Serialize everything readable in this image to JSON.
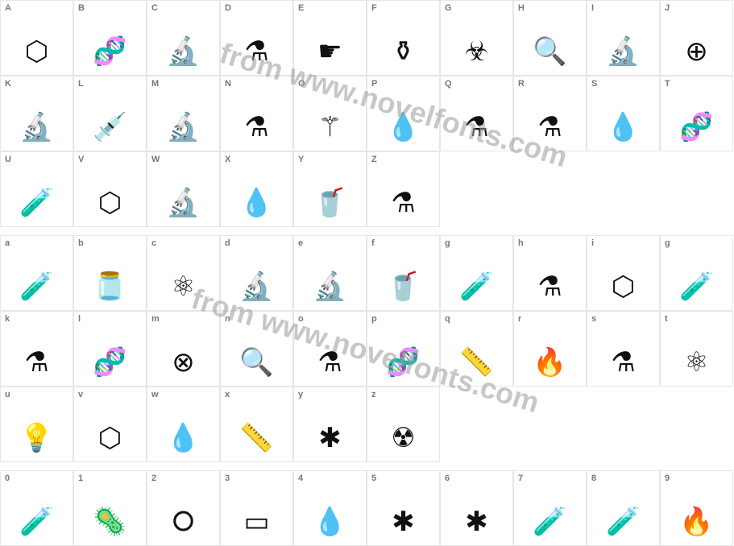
{
  "watermark": {
    "text": "from www.novelfonts.com",
    "color": "#9b9b9b"
  },
  "grid": {
    "cell_border_color": "#e6e6e6",
    "label_color": "#777777",
    "icon_color": "#111111",
    "columns": 10,
    "sections": [
      {
        "kind": "uppercase",
        "rows": [
          [
            {
              "char": "A",
              "icon": "molecule",
              "glyph": "⬡"
            },
            {
              "char": "B",
              "icon": "dna",
              "glyph": "🧬"
            },
            {
              "char": "C",
              "icon": "microscope",
              "glyph": "🔬"
            },
            {
              "char": "D",
              "icon": "flask",
              "glyph": "⚗"
            },
            {
              "char": "E",
              "icon": "dropper-hand",
              "glyph": "☛"
            },
            {
              "char": "F",
              "icon": "round-flask",
              "glyph": "⚱"
            },
            {
              "char": "G",
              "icon": "biohazard",
              "glyph": "☣"
            },
            {
              "char": "H",
              "icon": "tube-magnifier",
              "glyph": "🔍"
            },
            {
              "char": "I",
              "icon": "microscope-outline",
              "glyph": "🔬"
            },
            {
              "char": "J",
              "icon": "round-flask-plus",
              "glyph": "⊕"
            }
          ],
          [
            {
              "char": "K",
              "icon": "microscope2",
              "glyph": "🔬"
            },
            {
              "char": "L",
              "icon": "syringe",
              "glyph": "💉"
            },
            {
              "char": "M",
              "icon": "microscope3",
              "glyph": "🔬"
            },
            {
              "char": "N",
              "icon": "lab-stand",
              "glyph": "⚗"
            },
            {
              "char": "O",
              "icon": "mortar-pestle",
              "glyph": "⚚"
            },
            {
              "char": "P",
              "icon": "drop-tubes",
              "glyph": "💧"
            },
            {
              "char": "Q",
              "icon": "flasks-pair",
              "glyph": "⚗"
            },
            {
              "char": "R",
              "icon": "flask-bubbles",
              "glyph": "⚗"
            },
            {
              "char": "S",
              "icon": "tube-dropper",
              "glyph": "💧"
            },
            {
              "char": "T",
              "icon": "dna-x",
              "glyph": "🧬"
            }
          ],
          [
            {
              "char": "U",
              "icon": "beaker-stir",
              "glyph": "🧪"
            },
            {
              "char": "V",
              "icon": "chemical-structure",
              "glyph": "⬡"
            },
            {
              "char": "W",
              "icon": "microscope4",
              "glyph": "🔬"
            },
            {
              "char": "X",
              "icon": "dropper",
              "glyph": "💧"
            },
            {
              "char": "Y",
              "icon": "measuring-cup",
              "glyph": "🥤"
            },
            {
              "char": "Z",
              "icon": "round-flask2",
              "glyph": "⚗"
            }
          ]
        ]
      },
      {
        "kind": "lowercase",
        "rows": [
          [
            {
              "char": "a",
              "icon": "test-tubes",
              "glyph": "🧪"
            },
            {
              "char": "b",
              "icon": "jar",
              "glyph": "🫙"
            },
            {
              "char": "c",
              "icon": "atom",
              "glyph": "⚛"
            },
            {
              "char": "d",
              "icon": "microscope5",
              "glyph": "🔬"
            },
            {
              "char": "e",
              "icon": "microscope6",
              "glyph": "🔬"
            },
            {
              "char": "f",
              "icon": "beverage",
              "glyph": "🥤"
            },
            {
              "char": "g",
              "icon": "tube-sparkle",
              "glyph": "🧪"
            },
            {
              "char": "h",
              "icon": "flask-drops",
              "glyph": "⚗"
            },
            {
              "char": "i",
              "icon": "molecule2",
              "glyph": "⬡"
            },
            {
              "char": "g",
              "icon": "tube-sparkle2",
              "glyph": "🧪"
            }
          ],
          [
            {
              "char": "k",
              "icon": "flask-burst",
              "glyph": "⚗"
            },
            {
              "char": "l",
              "icon": "dna2",
              "glyph": "🧬"
            },
            {
              "char": "m",
              "icon": "round-flask-x",
              "glyph": "⊗"
            },
            {
              "char": "n",
              "icon": "tube-search",
              "glyph": "🔍"
            },
            {
              "char": "o",
              "icon": "flask-bubbles2",
              "glyph": "⚗"
            },
            {
              "char": "p",
              "icon": "dna3",
              "glyph": "🧬"
            },
            {
              "char": "q",
              "icon": "graduated-cylinder",
              "glyph": "📏"
            },
            {
              "char": "r",
              "icon": "bunsen-burner",
              "glyph": "🔥"
            },
            {
              "char": "s",
              "icon": "flask-plain",
              "glyph": "⚗"
            },
            {
              "char": "t",
              "icon": "atom2",
              "glyph": "⚛"
            }
          ],
          [
            {
              "char": "u",
              "icon": "bulb-flask",
              "glyph": "💡"
            },
            {
              "char": "v",
              "icon": "molecule3",
              "glyph": "⬡"
            },
            {
              "char": "w",
              "icon": "dropper2",
              "glyph": "💧"
            },
            {
              "char": "x",
              "icon": "graduated-cylinder2",
              "glyph": "📏"
            },
            {
              "char": "y",
              "icon": "molecule4",
              "glyph": "✱"
            },
            {
              "char": "z",
              "icon": "barrel-radioactive",
              "glyph": "☢"
            }
          ]
        ]
      },
      {
        "kind": "numeric",
        "rows": [
          [
            {
              "char": "0",
              "icon": "tube-rack",
              "glyph": "🧪"
            },
            {
              "char": "1",
              "icon": "bacteria",
              "glyph": "🦠"
            },
            {
              "char": "2",
              "icon": "ring-flasks",
              "glyph": "⭘"
            },
            {
              "char": "3",
              "icon": "emc2-board",
              "glyph": "▭"
            },
            {
              "char": "4",
              "icon": "pipette",
              "glyph": "💧"
            },
            {
              "char": "5",
              "icon": "person-orbit",
              "glyph": "✱"
            },
            {
              "char": "6",
              "icon": "molecule5",
              "glyph": "✱"
            },
            {
              "char": "7",
              "icon": "flask-tube",
              "glyph": "🧪"
            },
            {
              "char": "8",
              "icon": "beaker",
              "glyph": "🧪"
            },
            {
              "char": "9",
              "icon": "flask-flame",
              "glyph": "🔥"
            }
          ]
        ]
      }
    ]
  }
}
